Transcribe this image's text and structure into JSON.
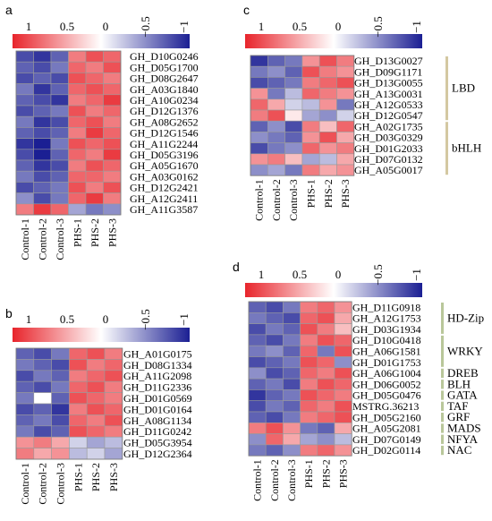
{
  "chart_data": [
    {
      "panel": "a",
      "type": "heatmap",
      "color_scale": {
        "low": -1,
        "high": 1,
        "low_color": "#1b1f93",
        "mid_color": "#ffffff",
        "high_color": "#e8252c"
      },
      "colorbar_ticks": [
        "1",
        "0.5",
        "0",
        "−0.5",
        "−1"
      ],
      "columns": [
        "Control-1",
        "Control-2",
        "Control-3",
        "PHS-1",
        "PHS-2",
        "PHS-3"
      ],
      "rows": [
        "GH_D10G0246",
        "GH_D05G1700",
        "GH_D08G2647",
        "GH_A03G1840",
        "GH_A10G0234",
        "GH_D12G1376",
        "GH_A08G2652",
        "GH_D12G1546",
        "GH_A11G2244",
        "GH_D05G3196",
        "GH_A05G1670",
        "GH_A03G0162",
        "GH_D12G2421",
        "GH_A12G2411",
        "GH_A11G3587"
      ],
      "values": [
        [
          -0.8,
          -0.9,
          -0.7,
          0.6,
          0.8,
          0.7
        ],
        [
          -0.7,
          -0.8,
          -0.6,
          0.7,
          0.6,
          0.8
        ],
        [
          -0.8,
          -0.7,
          -0.8,
          0.8,
          0.7,
          0.6
        ],
        [
          -0.6,
          -0.9,
          -0.7,
          0.7,
          0.8,
          0.7
        ],
        [
          -0.7,
          -0.8,
          -0.9,
          0.6,
          0.7,
          0.9
        ],
        [
          -0.8,
          -0.7,
          -0.6,
          0.8,
          0.6,
          0.7
        ],
        [
          -0.6,
          -0.9,
          -0.8,
          0.7,
          0.8,
          0.6
        ],
        [
          -0.7,
          -0.8,
          -0.7,
          0.6,
          0.9,
          0.7
        ],
        [
          -0.9,
          -1.0,
          -0.6,
          0.8,
          0.7,
          0.8
        ],
        [
          -0.8,
          -1.0,
          -0.7,
          0.7,
          0.6,
          0.9
        ],
        [
          -0.7,
          -0.9,
          -0.8,
          0.6,
          0.8,
          0.7
        ],
        [
          -0.6,
          -0.8,
          -0.7,
          0.7,
          0.7,
          0.6
        ],
        [
          -0.8,
          -0.7,
          -0.6,
          0.8,
          0.6,
          0.8
        ],
        [
          -0.5,
          -0.8,
          -0.6,
          0.7,
          0.9,
          0.6
        ],
        [
          0.6,
          0.9,
          0.7,
          -0.4,
          -0.6,
          -0.5
        ]
      ]
    },
    {
      "panel": "b",
      "type": "heatmap",
      "color_scale": {
        "low": -1,
        "high": 1,
        "low_color": "#1b1f93",
        "mid_color": "#ffffff",
        "high_color": "#e8252c"
      },
      "colorbar_ticks": [
        "1",
        "0.5",
        "0",
        "−0.5",
        "−1"
      ],
      "columns": [
        "Control-1",
        "Control-2",
        "Control-3",
        "PHS-1",
        "PHS-2",
        "PHS-3"
      ],
      "rows": [
        "GH_A01G0175",
        "GH_D08G1334",
        "GH_A11G2098",
        "GH_D11G2336",
        "GH_D01G0569",
        "GH_D01G0164",
        "GH_A08G1134",
        "GH_D11G0242",
        "GH_D05G3954",
        "GH_D12G2364"
      ],
      "values": [
        [
          -0.7,
          -0.8,
          -0.6,
          0.7,
          0.8,
          0.6
        ],
        [
          -0.6,
          -0.7,
          -0.8,
          0.8,
          0.6,
          0.7
        ],
        [
          -0.8,
          -0.6,
          -0.7,
          0.6,
          0.7,
          0.8
        ],
        [
          -0.7,
          -0.8,
          -0.6,
          0.7,
          0.8,
          0.6
        ],
        [
          -0.6,
          0.0,
          -0.7,
          0.8,
          0.7,
          0.6
        ],
        [
          -0.8,
          -0.7,
          -0.9,
          0.6,
          0.8,
          0.7
        ],
        [
          -0.7,
          -0.6,
          -0.8,
          0.7,
          0.6,
          0.8
        ],
        [
          -0.6,
          -0.8,
          -0.7,
          0.8,
          0.7,
          0.6
        ],
        [
          0.5,
          0.6,
          0.4,
          -0.2,
          -0.4,
          -0.3
        ],
        [
          0.6,
          0.4,
          0.5,
          -0.3,
          -0.2,
          -0.4
        ]
      ]
    },
    {
      "panel": "c",
      "type": "heatmap",
      "color_scale": {
        "low": -1,
        "high": 1,
        "low_color": "#1b1f93",
        "mid_color": "#ffffff",
        "high_color": "#e8252c"
      },
      "colorbar_ticks": [
        "1",
        "0.5",
        "0",
        "−0.5",
        "−1"
      ],
      "columns": [
        "Control-1",
        "Control-2",
        "Control-3",
        "PHS-1",
        "PHS-2",
        "PHS-3"
      ],
      "rows": [
        "GH_D13G0027",
        "GH_D09G1171",
        "GH_D13G0055",
        "GH_A13G0031",
        "GH_A12G0533",
        "GH_D12G0547",
        "GH_A02G1735",
        "GH_D03G0329",
        "GH_D01G2033",
        "GH_D07G0132",
        "GH_A05G0017"
      ],
      "values": [
        [
          -0.9,
          -0.7,
          -0.6,
          0.5,
          0.8,
          0.6
        ],
        [
          -0.6,
          -0.5,
          -0.7,
          0.8,
          0.6,
          0.5
        ],
        [
          -0.8,
          -0.7,
          -0.6,
          0.6,
          0.7,
          0.8
        ],
        [
          0.5,
          -0.6,
          -0.3,
          0.7,
          0.6,
          0.5
        ],
        [
          0.7,
          0.4,
          -0.2,
          -0.3,
          0.5,
          -0.6
        ],
        [
          0.6,
          0.8,
          0.1,
          -0.4,
          -0.5,
          -0.2
        ],
        [
          -0.7,
          -0.5,
          -0.8,
          0.6,
          0.3,
          0.7
        ],
        [
          -0.5,
          -0.6,
          -0.7,
          0.5,
          0.8,
          0.4
        ],
        [
          -0.8,
          -0.6,
          -0.5,
          0.7,
          0.5,
          0.6
        ],
        [
          0.5,
          0.6,
          0.3,
          -0.4,
          -0.3,
          0.4
        ],
        [
          -0.5,
          -0.4,
          -0.6,
          0.6,
          0.4,
          0.5
        ]
      ],
      "groups": [
        {
          "label": "LBD",
          "start": 0,
          "end": 5
        },
        {
          "label": "bHLH",
          "start": 6,
          "end": 10
        }
      ]
    },
    {
      "panel": "d",
      "type": "heatmap",
      "color_scale": {
        "low": -1,
        "high": 1,
        "low_color": "#1b1f93",
        "mid_color": "#ffffff",
        "high_color": "#e8252c"
      },
      "colorbar_ticks": [
        "1",
        "0.5",
        "0",
        "−0.5",
        "−1"
      ],
      "columns": [
        "Control-1",
        "Control-2",
        "Control-3",
        "PHS-1",
        "PHS-2",
        "PHS-3"
      ],
      "rows": [
        "GH_D11G0918",
        "GH_A12G1753",
        "GH_D03G1934",
        "GH_D10G0418",
        "GH_A06G1581",
        "GH_D01G1753",
        "GH_A06G1004",
        "GH_D06G0052",
        "GH_D05G0476",
        "MSTRG.36213",
        "GH_D05G2160",
        "GH_A05G2081",
        "GH_D07G0149",
        "GH_D02G0114"
      ],
      "values": [
        [
          -0.7,
          -0.8,
          -0.6,
          0.6,
          0.7,
          0.5
        ],
        [
          -0.6,
          -0.7,
          -0.8,
          0.7,
          0.8,
          0.4
        ],
        [
          -0.8,
          -0.6,
          -0.7,
          0.8,
          0.6,
          0.3
        ],
        [
          -0.7,
          -0.8,
          -0.6,
          0.6,
          0.8,
          0.7
        ],
        [
          -0.6,
          -0.5,
          -0.7,
          0.7,
          -0.6,
          0.8
        ],
        [
          -0.8,
          -0.7,
          -0.6,
          0.8,
          0.7,
          -0.5
        ],
        [
          -0.5,
          -0.8,
          -0.7,
          0.7,
          0.6,
          0.8
        ],
        [
          -0.7,
          -0.6,
          -0.8,
          0.6,
          0.8,
          0.7
        ],
        [
          -0.9,
          -0.7,
          -0.6,
          0.8,
          0.7,
          0.6
        ],
        [
          -0.8,
          -0.6,
          -0.7,
          0.7,
          0.6,
          0.8
        ],
        [
          -0.7,
          -0.8,
          -0.6,
          0.6,
          0.7,
          0.8
        ],
        [
          0.6,
          0.8,
          0.5,
          -0.6,
          -0.7,
          0.4
        ],
        [
          -0.5,
          0.7,
          0.4,
          -0.4,
          -0.5,
          -0.3
        ],
        [
          -0.6,
          -0.7,
          -0.5,
          0.6,
          0.7,
          0.5
        ]
      ],
      "groups": [
        {
          "label": "HD-Zip",
          "start": 0,
          "end": 2
        },
        {
          "label": "WRKY",
          "start": 3,
          "end": 5
        },
        {
          "label": "DREB",
          "start": 6,
          "end": 6
        },
        {
          "label": "BLH",
          "start": 7,
          "end": 7
        },
        {
          "label": "GATA",
          "start": 8,
          "end": 8
        },
        {
          "label": "TAF",
          "start": 9,
          "end": 9
        },
        {
          "label": "GRF",
          "start": 10,
          "end": 10
        },
        {
          "label": "MADS",
          "start": 11,
          "end": 11
        },
        {
          "label": "NFYA",
          "start": 12,
          "end": 12
        },
        {
          "label": "NAC",
          "start": 13,
          "end": 13
        }
      ]
    }
  ],
  "style": {
    "border_color": "#9a9a9a",
    "group_bar_color": "#d4c8a2",
    "group_bar_color_green": "#b9c79a"
  }
}
